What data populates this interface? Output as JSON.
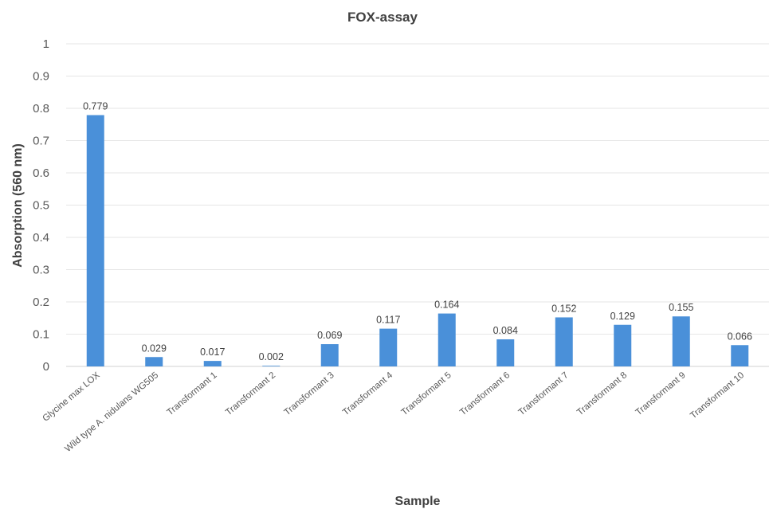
{
  "chart_data": {
    "type": "bar",
    "title": "FOX-assay",
    "xlabel": "Sample",
    "ylabel": "Absorption (560 nm)",
    "ylim": [
      0,
      1
    ],
    "yticks": [
      "0",
      "0.1",
      "0.2",
      "0.3",
      "0.4",
      "0.5",
      "0.6",
      "0.7",
      "0.8",
      "0.9",
      "1"
    ],
    "grid": true,
    "legend": "none",
    "bar_color": "#4a90d9",
    "categories": [
      "Glycine max LOX",
      "Wild type A. nidulans WG505",
      "Transformant 1",
      "Transformant 2",
      "Transformant 3",
      "Transformant 4",
      "Transformant 5",
      "Transformant 6",
      "Transformant 7",
      "Transformant 8",
      "Transformant 9",
      "Transformant 10"
    ],
    "values": [
      0.779,
      0.029,
      0.017,
      0.002,
      0.069,
      0.117,
      0.164,
      0.084,
      0.152,
      0.129,
      0.155,
      0.066
    ],
    "data_labels": [
      "0.779",
      "0.029",
      "0.017",
      "0.002",
      "0.069",
      "0.117",
      "0.164",
      "0.084",
      "0.152",
      "0.129",
      "0.155",
      "0.066"
    ]
  }
}
